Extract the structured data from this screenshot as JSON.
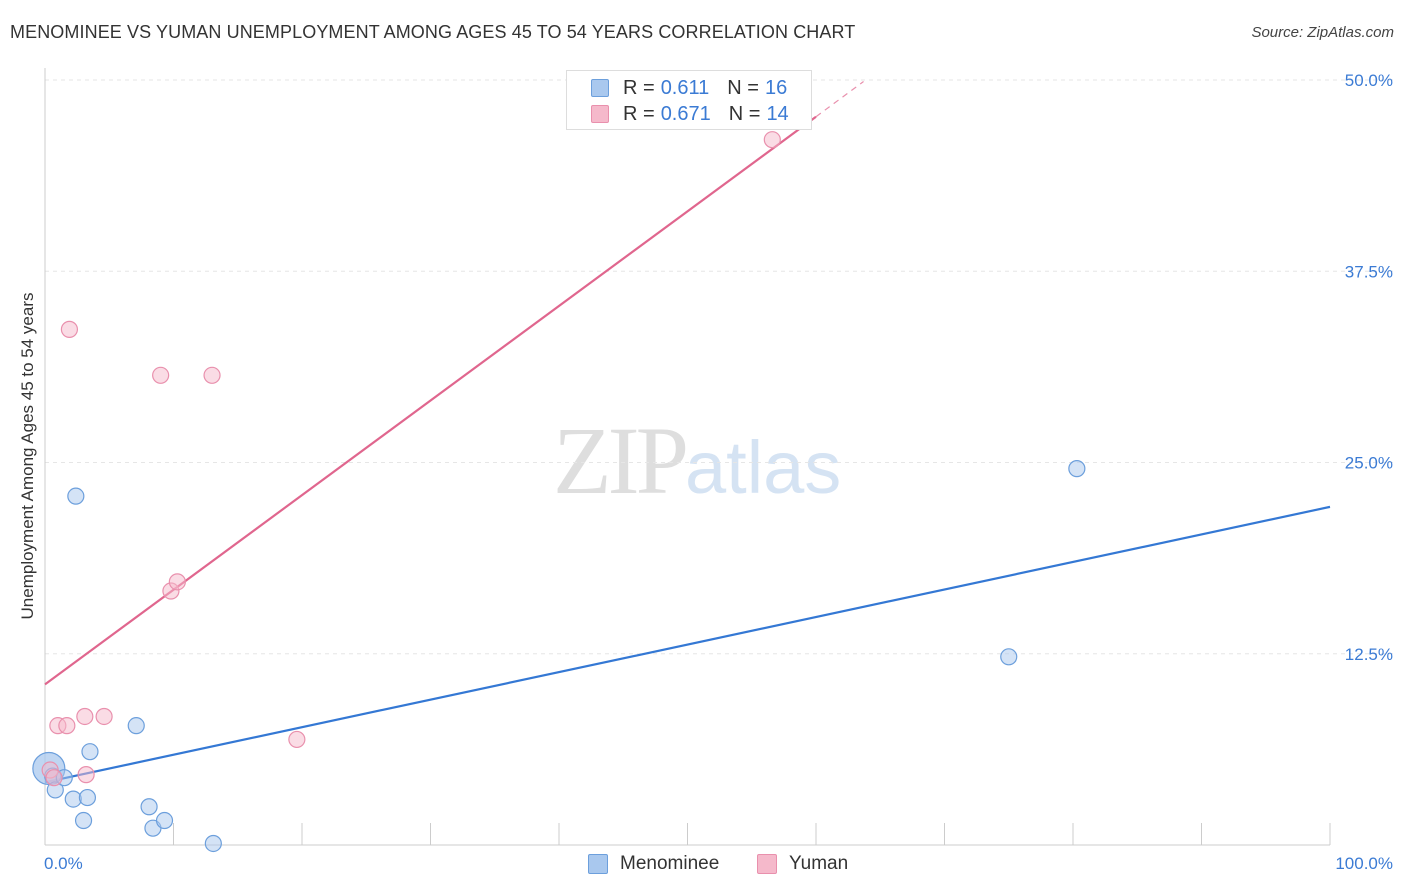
{
  "title": "MENOMINEE VS YUMAN UNEMPLOYMENT AMONG AGES 45 TO 54 YEARS CORRELATION CHART",
  "source": "Source: ZipAtlas.com",
  "watermark": {
    "zip": "ZIP",
    "atlas": "atlas"
  },
  "colors": {
    "menominee_fill": "#a9c8ee",
    "menominee_stroke": "#6c9fdc",
    "menominee_line": "#3478d4",
    "yuman_fill": "#f5b9cb",
    "yuman_stroke": "#e990ad",
    "yuman_line": "#e0668e",
    "axis_label": "#3b7bd4",
    "grid": "#e6e6e6"
  },
  "legend": {
    "rows": [
      {
        "series": "Menominee",
        "r_label": "R =",
        "r_value": "0.611",
        "n_label": "N =",
        "n_value": "16"
      },
      {
        "series": "Yuman",
        "r_label": "R =",
        "r_value": "0.671",
        "n_label": "N =",
        "n_value": "14"
      }
    ]
  },
  "bottom_legend": [
    "Menominee",
    "Yuman"
  ],
  "chart_data": {
    "type": "scatter",
    "title": "MENOMINEE VS YUMAN UNEMPLOYMENT AMONG AGES 45 TO 54 YEARS CORRELATION CHART",
    "xlabel": "",
    "ylabel": "Unemployment Among Ages 45 to 54 years",
    "xlim": [
      0,
      100
    ],
    "ylim": [
      0,
      50
    ],
    "x_tick_labels": [
      "0.0%",
      "100.0%"
    ],
    "y_ticks": [
      12.5,
      25.0,
      37.5,
      50.0
    ],
    "y_tick_labels": [
      "12.5%",
      "25.0%",
      "37.5%",
      "50.0%"
    ],
    "grid": true,
    "legend_position": "top-center",
    "series": [
      {
        "name": "Menominee",
        "r": 0.611,
        "n": 16,
        "points": [
          {
            "x": 0.3,
            "y": 5.0,
            "size": "large"
          },
          {
            "x": 0.6,
            "y": 4.5
          },
          {
            "x": 0.8,
            "y": 3.6
          },
          {
            "x": 1.5,
            "y": 4.4
          },
          {
            "x": 2.2,
            "y": 3.0
          },
          {
            "x": 2.4,
            "y": 22.8
          },
          {
            "x": 3.0,
            "y": 1.6
          },
          {
            "x": 3.3,
            "y": 3.1
          },
          {
            "x": 3.5,
            "y": 6.1
          },
          {
            "x": 7.1,
            "y": 7.8
          },
          {
            "x": 8.1,
            "y": 2.5
          },
          {
            "x": 8.4,
            "y": 1.1
          },
          {
            "x": 9.3,
            "y": 1.6
          },
          {
            "x": 13.1,
            "y": 0.1
          },
          {
            "x": 75.0,
            "y": 12.3
          },
          {
            "x": 80.3,
            "y": 24.6
          }
        ],
        "trend": {
          "x0": 0,
          "y0": 4.1,
          "x1": 100,
          "y1": 22.1
        }
      },
      {
        "name": "Yuman",
        "r": 0.671,
        "n": 14,
        "points": [
          {
            "x": 0.4,
            "y": 4.9
          },
          {
            "x": 0.7,
            "y": 4.4
          },
          {
            "x": 1.0,
            "y": 7.8
          },
          {
            "x": 1.7,
            "y": 7.8
          },
          {
            "x": 1.9,
            "y": 33.7
          },
          {
            "x": 3.1,
            "y": 8.4
          },
          {
            "x": 3.2,
            "y": 4.6
          },
          {
            "x": 4.6,
            "y": 8.4
          },
          {
            "x": 9.0,
            "y": 30.7
          },
          {
            "x": 9.8,
            "y": 16.6
          },
          {
            "x": 10.3,
            "y": 17.2
          },
          {
            "x": 13.0,
            "y": 30.7
          },
          {
            "x": 19.6,
            "y": 6.9
          },
          {
            "x": 56.6,
            "y": 46.1
          }
        ],
        "trend": {
          "x0": 0,
          "y0": 10.5,
          "x1": 60,
          "y1": 47.6
        },
        "trend_extension": {
          "x0": 60,
          "y0": 47.6,
          "x1": 63.7,
          "y1": 49.9
        }
      }
    ]
  }
}
